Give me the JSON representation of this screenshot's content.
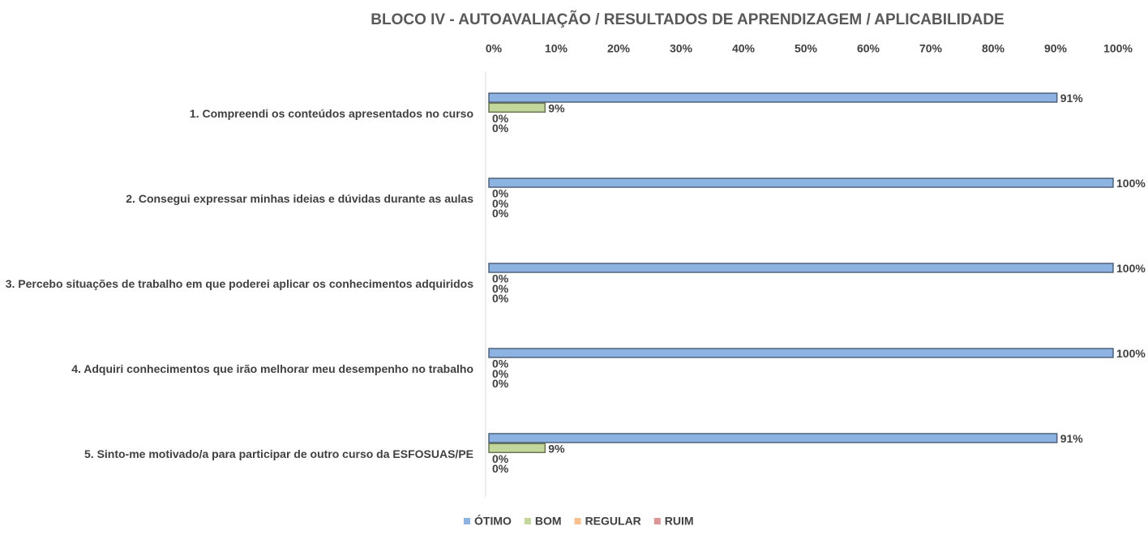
{
  "chart_data": {
    "type": "bar",
    "orientation": "horizontal",
    "title": "BLOCO IV - AUTOAVALIAÇÃO / RESULTADOS DE APRENDIZAGEM / APLICABILIDADE",
    "categories": [
      "1. Compreendi os conteúdos apresentados no curso",
      "2. Consegui expressar minhas ideias e dúvidas durante as aulas",
      "3. Percebo situações de trabalho em que poderei aplicar os conhecimentos adquiridos",
      "4. Adquiri conhecimentos que irão melhorar meu desempenho no trabalho",
      "5. Sinto-me motivado/a para participar de outro curso da ESFOSUAS/PE"
    ],
    "series": [
      {
        "name": "ÓTIMO",
        "color": "#8db3e2",
        "values": [
          91,
          100,
          100,
          100,
          91
        ],
        "value_labels": [
          "91%",
          "100%",
          "100%",
          "100%",
          "91%"
        ]
      },
      {
        "name": "BOM",
        "color": "#c3d69b",
        "values": [
          9,
          0,
          0,
          0,
          9
        ],
        "value_labels": [
          "9%",
          "0%",
          "0%",
          "0%",
          "9%"
        ]
      },
      {
        "name": "REGULAR",
        "color": "#fac090",
        "values": [
          0,
          0,
          0,
          0,
          0
        ],
        "value_labels": [
          "0%",
          "0%",
          "0%",
          "0%",
          "0%"
        ]
      },
      {
        "name": "RUIM",
        "color": "#d99694",
        "values": [
          0,
          0,
          0,
          0,
          0
        ],
        "value_labels": [
          "0%",
          "0%",
          "0%",
          "0%",
          "0%"
        ]
      }
    ],
    "xlim": [
      0,
      100
    ],
    "xticks": [
      {
        "value": 0,
        "label": "0%"
      },
      {
        "value": 10,
        "label": "10%"
      },
      {
        "value": 20,
        "label": "20%"
      },
      {
        "value": 30,
        "label": "30%"
      },
      {
        "value": 40,
        "label": "40%"
      },
      {
        "value": 50,
        "label": "50%"
      },
      {
        "value": 60,
        "label": "60%"
      },
      {
        "value": 70,
        "label": "70%"
      },
      {
        "value": 80,
        "label": "80%"
      },
      {
        "value": 90,
        "label": "90%"
      },
      {
        "value": 100,
        "label": "100%"
      }
    ],
    "grid": false,
    "legend": "bottom"
  }
}
